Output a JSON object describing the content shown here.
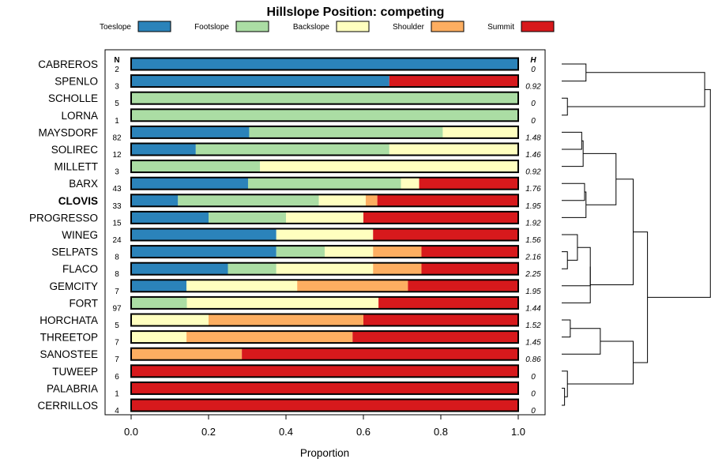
{
  "chart_data": {
    "type": "bar",
    "subtype": "stacked-horizontal-proportion",
    "title": "Hillslope Position: competing",
    "xlabel": "Proportion",
    "ylabel": "",
    "xlim": [
      0,
      1
    ],
    "xticks": [
      "0.0",
      "0.2",
      "0.4",
      "0.6",
      "0.8",
      "1.0"
    ],
    "xtick_values": [
      0,
      0.2,
      0.4,
      0.6,
      0.8,
      1.0
    ],
    "n_header": "N",
    "h_header": "H",
    "legend": [
      {
        "name": "Toeslope",
        "color": "#2b83ba"
      },
      {
        "name": "Footslope",
        "color": "#abdda4"
      },
      {
        "name": "Backslope",
        "color": "#ffffbf"
      },
      {
        "name": "Shoulder",
        "color": "#fdae61"
      },
      {
        "name": "Summit",
        "color": "#d7191c"
      }
    ],
    "rows": [
      {
        "name": "CABREROS",
        "n": "2",
        "h": "0",
        "values": [
          1,
          0,
          0,
          0,
          0
        ],
        "bold": false
      },
      {
        "name": "SPENLO",
        "n": "3",
        "h": "0.92",
        "values": [
          0.667,
          0,
          0,
          0,
          0.333
        ],
        "bold": false
      },
      {
        "name": "SCHOLLE",
        "n": "5",
        "h": "0",
        "values": [
          0,
          1,
          0,
          0,
          0
        ],
        "bold": false
      },
      {
        "name": "LORNA",
        "n": "1",
        "h": "0",
        "values": [
          0,
          1,
          0,
          0,
          0
        ],
        "bold": false
      },
      {
        "name": "MAYSDORF",
        "n": "82",
        "h": "1.48",
        "values": [
          0.305,
          0.5,
          0.195,
          0,
          0
        ],
        "bold": false
      },
      {
        "name": "SOLIREC",
        "n": "12",
        "h": "1.46",
        "values": [
          0.167,
          0.5,
          0.333,
          0,
          0
        ],
        "bold": false
      },
      {
        "name": "MILLETT",
        "n": "3",
        "h": "0.92",
        "values": [
          0,
          0.333,
          0.667,
          0,
          0
        ],
        "bold": false
      },
      {
        "name": "BARX",
        "n": "43",
        "h": "1.76",
        "values": [
          0.302,
          0.395,
          0.047,
          0,
          0.256
        ],
        "bold": false
      },
      {
        "name": "CLOVIS",
        "n": "33",
        "h": "1.95",
        "values": [
          0.121,
          0.364,
          0.121,
          0.03,
          0.364
        ],
        "bold": true
      },
      {
        "name": "PROGRESSO",
        "n": "15",
        "h": "1.92",
        "values": [
          0.2,
          0.2,
          0.2,
          0,
          0.4
        ],
        "bold": false
      },
      {
        "name": "WINEG",
        "n": "24",
        "h": "1.56",
        "values": [
          0.375,
          0,
          0.25,
          0,
          0.375
        ],
        "bold": false
      },
      {
        "name": "SELPATS",
        "n": "8",
        "h": "2.16",
        "values": [
          0.375,
          0.125,
          0.125,
          0.125,
          0.25
        ],
        "bold": false
      },
      {
        "name": "FLACO",
        "n": "8",
        "h": "2.25",
        "values": [
          0.25,
          0.125,
          0.25,
          0.125,
          0.25
        ],
        "bold": false
      },
      {
        "name": "GEMCITY",
        "n": "7",
        "h": "1.95",
        "values": [
          0.143,
          0,
          0.286,
          0.286,
          0.286
        ],
        "bold": false
      },
      {
        "name": "FORT",
        "n": "97",
        "h": "1.44",
        "values": [
          0,
          0.144,
          0.495,
          0,
          0.361
        ],
        "bold": false
      },
      {
        "name": "HORCHATA",
        "n": "5",
        "h": "1.52",
        "values": [
          0,
          0,
          0.2,
          0.4,
          0.4
        ],
        "bold": false
      },
      {
        "name": "THREETOP",
        "n": "7",
        "h": "1.45",
        "values": [
          0,
          0,
          0.143,
          0.429,
          0.429
        ],
        "bold": false
      },
      {
        "name": "SANOSTEE",
        "n": "7",
        "h": "0.86",
        "values": [
          0,
          0,
          0,
          0.286,
          0.714
        ],
        "bold": false
      },
      {
        "name": "TUWEEP",
        "n": "6",
        "h": "0",
        "values": [
          0,
          0,
          0,
          0,
          1
        ],
        "bold": false
      },
      {
        "name": "PALABRIA",
        "n": "1",
        "h": "0",
        "values": [
          0,
          0,
          0,
          0,
          1
        ],
        "bold": false
      },
      {
        "name": "CERRILLOS",
        "n": "4",
        "h": "0",
        "values": [
          0,
          0,
          0,
          0,
          1
        ],
        "bold": false
      }
    ],
    "dendrogram": {
      "merges": [
        [
          0,
          1,
          0.17
        ],
        [
          2,
          3,
          0.04
        ],
        [
          4,
          5,
          0.14
        ],
        [
          7,
          8,
          0.16
        ],
        [
          9,
          -4,
          0.17
        ],
        [
          11,
          12,
          0.04
        ],
        [
          -6,
          10,
          0.11
        ],
        [
          -1,
          -2,
          1.0
        ],
        [
          -3,
          6,
          0.15
        ],
        [
          -7,
          13,
          0.2
        ],
        [
          -10,
          14,
          0.2
        ],
        [
          -5,
          -9,
          0.38
        ],
        [
          15,
          16,
          0.06
        ],
        [
          -13,
          17,
          0.27
        ],
        [
          19,
          20,
          0.02
        ],
        [
          18,
          -15,
          0.04
        ],
        [
          -14,
          -16,
          0.5
        ],
        [
          -12,
          -11,
          0.5
        ],
        [
          -18,
          -17,
          0.6
        ],
        [
          -8,
          -19,
          1.04
        ]
      ]
    }
  }
}
